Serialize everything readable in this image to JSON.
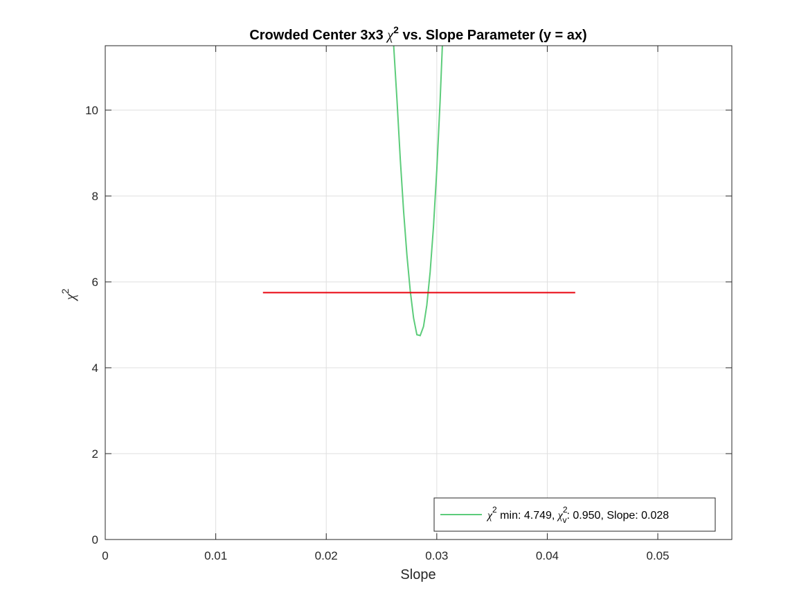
{
  "chart_data": {
    "type": "line",
    "title_prefix": "Crowded Center 3x3",
    "title_symbol": "χ",
    "title_sup": "2",
    "title_suffix": "vs. Slope Parameter (y = ax)",
    "xlabel": "Slope",
    "ylabel_symbol": "χ",
    "ylabel_sup": "2",
    "xlim": [
      0,
      0.0567
    ],
    "ylim": [
      0,
      11.5
    ],
    "xticks": [
      0,
      0.01,
      0.02,
      0.03,
      0.04,
      0.05
    ],
    "xtick_labels": [
      "0",
      "0.01",
      "0.02",
      "0.03",
      "0.04",
      "0.05"
    ],
    "yticks": [
      0,
      2,
      4,
      6,
      8,
      10
    ],
    "ytick_labels": [
      "0",
      "2",
      "4",
      "6",
      "8",
      "10"
    ],
    "grid": true,
    "legend_position": "bottom-right",
    "series": [
      {
        "name": "χ² min: 4.749, χᵥ²: 0.950, Slope: 0.028",
        "color": "#5ccc7a",
        "min_slope": 0.0284,
        "min_chi2": 4.749,
        "x": [
          0.0261,
          0.0264,
          0.0267,
          0.027,
          0.0273,
          0.0276,
          0.0279,
          0.0282,
          0.0285,
          0.0288,
          0.0291,
          0.0294,
          0.0297,
          0.03,
          0.0303,
          0.0306,
          0.0308
        ],
        "y": [
          11.5,
          10.23,
          8.85,
          7.64,
          6.62,
          5.79,
          5.16,
          4.77,
          4.75,
          4.96,
          5.46,
          6.23,
          7.28,
          8.6,
          10.2,
          12.1,
          13.4
        ]
      },
      {
        "name": "",
        "color": "#e8000b",
        "x": [
          0.01427,
          0.04253
        ],
        "y": [
          5.749,
          5.749
        ]
      }
    ]
  },
  "legend": {
    "sym": "χ",
    "sup": "2",
    "text1": " min: 4.749, ",
    "sym2": "χ",
    "sub2": "v",
    "sup2": "2",
    "text2": ": 0.950, Slope: 0.028"
  },
  "colors": {
    "axis": "#262626",
    "grid": "#dfdfdf",
    "fit_curve": "#5ccc7a",
    "threshold_line": "#e8000b"
  }
}
